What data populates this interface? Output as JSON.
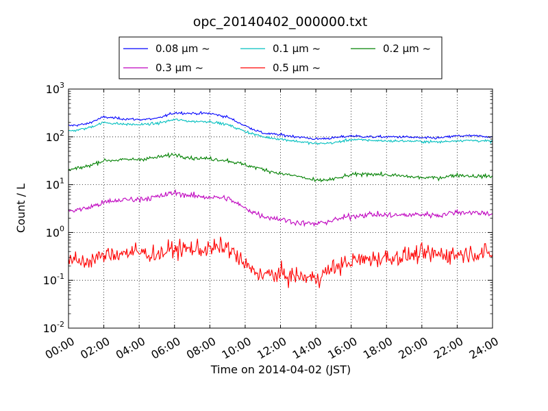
{
  "chart_data": {
    "type": "line",
    "title": "opc_20140402_000000.txt",
    "xlabel": "Time on 2014-04-02 (JST)",
    "ylabel": "Count / L",
    "xlim": [
      "00:00",
      "24:00"
    ],
    "ylim": [
      0.01,
      1000
    ],
    "yscale": "log",
    "grid": true,
    "legend_position": "top-center",
    "x_ticks": [
      "00:00",
      "02:00",
      "04:00",
      "06:00",
      "08:00",
      "10:00",
      "12:00",
      "14:00",
      "16:00",
      "18:00",
      "20:00",
      "22:00",
      "24:00"
    ],
    "y_ticks": [
      {
        "base": "10",
        "exp": "-2"
      },
      {
        "base": "10",
        "exp": "-1"
      },
      {
        "base": "10",
        "exp": "0"
      },
      {
        "base": "10",
        "exp": "1"
      },
      {
        "base": "10",
        "exp": "2"
      },
      {
        "base": "10",
        "exp": "3"
      }
    ],
    "x_hours": [
      0,
      1,
      2,
      3,
      4,
      5,
      6,
      7,
      8,
      9,
      10,
      11,
      12,
      13,
      14,
      15,
      16,
      17,
      18,
      19,
      20,
      21,
      22,
      23,
      24
    ],
    "series": [
      {
        "name": "0.08 μm ~",
        "color": "#0000ff",
        "noise": 0.03,
        "values": [
          170,
          185,
          260,
          240,
          230,
          240,
          320,
          310,
          310,
          260,
          170,
          120,
          110,
          100,
          90,
          95,
          105,
          100,
          100,
          100,
          95,
          95,
          105,
          105,
          100
        ]
      },
      {
        "name": "0.1 μm ~",
        "color": "#00bfbf",
        "noise": 0.03,
        "values": [
          130,
          150,
          200,
          185,
          180,
          190,
          230,
          210,
          210,
          180,
          130,
          100,
          90,
          80,
          72,
          75,
          88,
          85,
          82,
          82,
          80,
          78,
          84,
          84,
          80
        ]
      },
      {
        "name": "0.2 μm ~",
        "color": "#008000",
        "noise": 0.045,
        "values": [
          20,
          24,
          32,
          33,
          34,
          37,
          43,
          36,
          35,
          32,
          26,
          21,
          17,
          15,
          12,
          13,
          16,
          17,
          16,
          15,
          14,
          14,
          16,
          15,
          15
        ]
      },
      {
        "name": "0.3 μm ~",
        "color": "#bf00bf",
        "noise": 0.07,
        "values": [
          2.8,
          3.2,
          4.2,
          4.8,
          5.0,
          5.5,
          6.8,
          5.8,
          5.5,
          5.2,
          3.2,
          2.2,
          1.9,
          1.6,
          1.5,
          1.8,
          2.2,
          2.4,
          2.3,
          2.3,
          2.4,
          2.3,
          2.7,
          2.6,
          2.5
        ]
      },
      {
        "name": "0.5 μm ~",
        "color": "#ff0000",
        "noise": 0.22,
        "values": [
          0.25,
          0.25,
          0.32,
          0.38,
          0.38,
          0.35,
          0.45,
          0.45,
          0.45,
          0.5,
          0.2,
          0.13,
          0.13,
          0.12,
          0.11,
          0.18,
          0.25,
          0.28,
          0.3,
          0.32,
          0.35,
          0.35,
          0.35,
          0.38,
          0.35
        ]
      }
    ]
  }
}
